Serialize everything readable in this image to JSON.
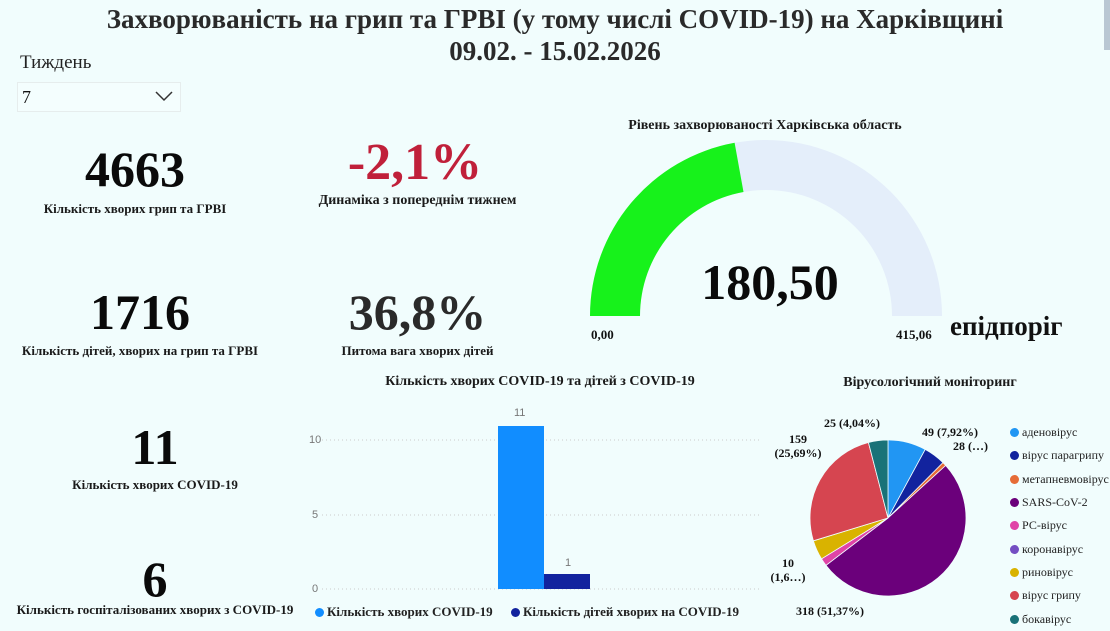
{
  "header": {
    "title_line1": "Захворюваність на грип та ГРВІ (у тому числі COVID-19) на Харківщині",
    "title_line2": "09.02. - 15.02.2026"
  },
  "filter": {
    "label": "Тиждень",
    "selected": "7",
    "icon": "chevron-down-icon"
  },
  "kpis": {
    "flu_cases": {
      "value": "4663",
      "label": "Кількість хворих грип та ГРВІ"
    },
    "dynamics": {
      "value": "-2,1%",
      "label": "Динаміка з попереднім тижнем",
      "color": "#c0203a"
    },
    "children_cases": {
      "value": "1716",
      "label": "Кількість дітей, хворих на грип та ГРВІ"
    },
    "children_share": {
      "value": "36,8%",
      "label": "Питома вага хворих дітей"
    },
    "covid_cases": {
      "value": "11",
      "label": "Кількість хворих COVID-19"
    },
    "covid_hosp": {
      "value": "6",
      "label": "Кількість госпіталізованих хворих з COVID-19"
    }
  },
  "gauge": {
    "title": "Рівень захворюваності Харківська область",
    "value": "180,50",
    "min": "0,00",
    "max": "415,06",
    "threshold_label": "епідпоріг",
    "fill_color": "#17f21b",
    "track_color": "#e4eefa"
  },
  "chart_data": [
    {
      "type": "bar",
      "title": "Кількість хворих COVID-19 та дітей з COVID-19",
      "categories": [
        ""
      ],
      "series": [
        {
          "name": "Кількість хворих COVID-19",
          "values": [
            11
          ],
          "color": "#118dff"
        },
        {
          "name": "Кількість дітей хворих на COVID-19",
          "values": [
            1
          ],
          "color": "#12239e"
        }
      ],
      "yticks": [
        "0",
        "5",
        "10"
      ],
      "ylim": [
        0,
        12
      ],
      "grid": true,
      "legend_position": "bottom",
      "data_labels": [
        "11",
        "1"
      ]
    },
    {
      "type": "pie",
      "title": "Вірусологічний моніторинг",
      "legend_position": "right",
      "slices": [
        {
          "name": "аденовірус",
          "value": 49,
          "label": "49 (7,92%)",
          "color": "#2196f3"
        },
        {
          "name": "вірус парагрипу",
          "value": 28,
          "label": "28 (…)",
          "color": "#12239e"
        },
        {
          "name": "метапневмовірус",
          "value": 5,
          "label": "",
          "color": "#e66c37"
        },
        {
          "name": "SARS-CoV-2",
          "value": 318,
          "label": "318 (51,37%)",
          "color": "#6b007b"
        },
        {
          "name": "РС-вірус",
          "value": 10,
          "label": "10 (1,6…)",
          "color": "#e044a7"
        },
        {
          "name": "коронавірус",
          "value": 0,
          "label": "",
          "color": "#744ec2"
        },
        {
          "name": "риновірус",
          "value": 25,
          "label": "",
          "color": "#d9b300"
        },
        {
          "name": "вірус грипу",
          "value": 159,
          "label": "159 (25,69%)",
          "color": "#d64550"
        },
        {
          "name": "бокавірус",
          "value": 25,
          "label": "25 (4,04%)",
          "color": "#197278"
        }
      ]
    }
  ]
}
